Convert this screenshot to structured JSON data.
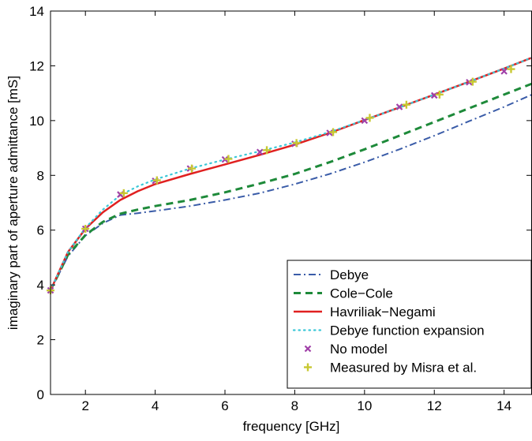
{
  "chart_data": {
    "type": "line",
    "title": "",
    "xlabel": "frequency [GHz]",
    "ylabel": "imaginary part of aperture admittance [mS]",
    "xlim": [
      1,
      14.8
    ],
    "ylim": [
      0,
      14
    ],
    "x_ticks": [
      2,
      4,
      6,
      8,
      10,
      12,
      14
    ],
    "y_ticks": [
      0,
      2,
      4,
      6,
      8,
      10,
      12,
      14
    ],
    "grid": false,
    "legend_position": "bottom-right",
    "series": [
      {
        "name": "Debye",
        "style": "dashdot",
        "color": "#3a5ca8",
        "x": [
          1,
          1.5,
          2,
          2.5,
          3,
          3.5,
          4,
          5,
          6,
          7,
          8,
          9,
          10,
          11,
          12,
          13,
          14,
          14.8
        ],
        "y": [
          3.8,
          5.05,
          5.8,
          6.25,
          6.55,
          6.62,
          6.7,
          6.88,
          7.1,
          7.35,
          7.68,
          8.05,
          8.48,
          8.95,
          9.45,
          9.98,
          10.5,
          10.95
        ]
      },
      {
        "name": "Cole−Cole",
        "style": "dashed",
        "color": "#1e8a3a",
        "x": [
          1,
          1.5,
          2,
          2.5,
          3,
          3.5,
          4,
          5,
          6,
          7,
          8,
          9,
          10,
          11,
          12,
          13,
          14,
          14.8
        ],
        "y": [
          3.8,
          5.1,
          5.82,
          6.3,
          6.6,
          6.75,
          6.88,
          7.1,
          7.38,
          7.7,
          8.05,
          8.48,
          8.95,
          9.45,
          9.95,
          10.45,
          10.95,
          11.35
        ]
      },
      {
        "name": "Havriliak−Negami",
        "style": "solid",
        "color": "#e02020",
        "x": [
          1,
          1.5,
          2,
          2.5,
          3,
          3.5,
          4,
          5,
          6,
          7,
          8,
          9,
          10,
          11,
          12,
          13,
          14,
          14.8
        ],
        "y": [
          3.8,
          5.2,
          6.05,
          6.65,
          7.1,
          7.42,
          7.68,
          8.05,
          8.4,
          8.75,
          9.12,
          9.55,
          10.02,
          10.48,
          10.95,
          11.42,
          11.9,
          12.3
        ]
      },
      {
        "name": "Debye function expansion",
        "style": "dotted",
        "color": "#3cc8d8",
        "x": [
          1,
          1.5,
          2,
          2.5,
          3,
          3.5,
          4,
          5,
          6,
          7,
          8,
          9,
          10,
          11,
          12,
          13,
          14,
          14.8
        ],
        "y": [
          3.8,
          5.2,
          6.08,
          6.75,
          7.28,
          7.6,
          7.85,
          8.25,
          8.58,
          8.88,
          9.2,
          9.58,
          10.02,
          10.48,
          10.95,
          11.42,
          11.9,
          12.3
        ]
      },
      {
        "name": "No model",
        "style": "marker-x",
        "color": "#a040a8",
        "x": [
          1,
          2,
          3,
          4,
          5,
          6,
          7,
          8,
          9,
          10,
          11,
          12,
          13,
          14
        ],
        "y": [
          3.8,
          6.05,
          7.3,
          7.8,
          8.25,
          8.58,
          8.85,
          9.15,
          9.55,
          10.0,
          10.5,
          10.92,
          11.4,
          11.8
        ]
      },
      {
        "name": "Measured by Misra et al.",
        "style": "marker-plus",
        "color": "#c8c832",
        "x": [
          1,
          2,
          3.1,
          4.05,
          5.05,
          6.1,
          7.2,
          8.05,
          9.1,
          10.15,
          11.2,
          12.15,
          13.1,
          14.2
        ],
        "y": [
          3.8,
          6.05,
          7.35,
          7.82,
          8.25,
          8.6,
          8.92,
          9.18,
          9.58,
          10.1,
          10.58,
          10.95,
          11.42,
          11.88
        ]
      }
    ]
  }
}
